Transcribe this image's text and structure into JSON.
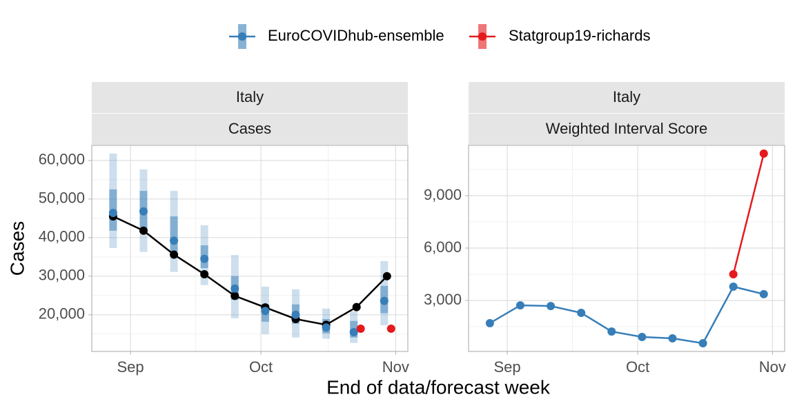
{
  "x_label": "End of data/forecast week",
  "chart_data": [
    {
      "type": "line",
      "strips": [
        "Italy",
        "Cases"
      ],
      "y_label": "Cases",
      "x": [
        -4,
        3,
        10,
        17,
        24,
        31,
        38,
        45,
        52,
        59
      ],
      "xlim": [
        -8.9,
        63.8
      ],
      "xticks": [
        {
          "value": 0,
          "label": "Sep"
        },
        {
          "value": 30,
          "label": "Oct"
        },
        {
          "value": 61,
          "label": "Nov"
        }
      ],
      "ylim": [
        10500,
        63900
      ],
      "yticks": [
        {
          "value": 20000,
          "label": "20,000"
        },
        {
          "value": 30000,
          "label": "30,000"
        },
        {
          "value": 40000,
          "label": "40,000"
        },
        {
          "value": 50000,
          "label": "50,000"
        },
        {
          "value": 60000,
          "label": "60,000"
        }
      ],
      "grid": true,
      "observed": {
        "color": "#000000",
        "values": [
          45500,
          41800,
          35600,
          30500,
          24900,
          21900,
          18900,
          17400,
          22000,
          30000
        ]
      },
      "series": [
        {
          "name": "EuroCOVIDhub-ensemble",
          "color": "#377eb8",
          "values": [
            46400,
            46800,
            39200,
            34500,
            26800,
            21000,
            20000,
            16700,
            15500,
            23600
          ],
          "outer_lower": [
            37300,
            36300,
            31100,
            27700,
            19100,
            15000,
            14100,
            13800,
            12700,
            17300
          ],
          "outer_upper": [
            61800,
            57700,
            52100,
            43200,
            35500,
            27300,
            26600,
            21600,
            20900,
            33900
          ],
          "inner_lower": [
            41800,
            41300,
            36400,
            32100,
            23900,
            18200,
            17700,
            15200,
            14100,
            20400
          ],
          "inner_upper": [
            52500,
            52100,
            45500,
            38000,
            30000,
            22700,
            22700,
            18900,
            18400,
            27500
          ]
        },
        {
          "name": "Statgroup19-richards",
          "color": "#e41a1c",
          "values": [
            null,
            null,
            null,
            null,
            null,
            null,
            null,
            null,
            16400,
            16400
          ]
        }
      ]
    },
    {
      "type": "line",
      "strips": [
        "Italy",
        "Weighted Interval Score"
      ],
      "x": [
        -4,
        3,
        10,
        17,
        24,
        31,
        38,
        45,
        52,
        59
      ],
      "xlim": [
        -8.9,
        63.8
      ],
      "xticks": [
        {
          "value": 0,
          "label": "Sep"
        },
        {
          "value": 30,
          "label": "Oct"
        },
        {
          "value": 61,
          "label": "Nov"
        }
      ],
      "ylim": [
        80,
        11880
      ],
      "yticks": [
        {
          "value": 3000,
          "label": "3,000"
        },
        {
          "value": 6000,
          "label": "6,000"
        },
        {
          "value": 9000,
          "label": "9,000"
        }
      ],
      "grid": true,
      "series": [
        {
          "name": "EuroCOVIDhub-ensemble",
          "color": "#377eb8",
          "values": [
            1700,
            2720,
            2680,
            2290,
            1220,
            910,
            830,
            550,
            3790,
            3360
          ]
        },
        {
          "name": "Statgroup19-richards",
          "color": "#e41a1c",
          "values": [
            null,
            null,
            null,
            null,
            null,
            null,
            null,
            null,
            4500,
            11410
          ]
        }
      ]
    }
  ]
}
